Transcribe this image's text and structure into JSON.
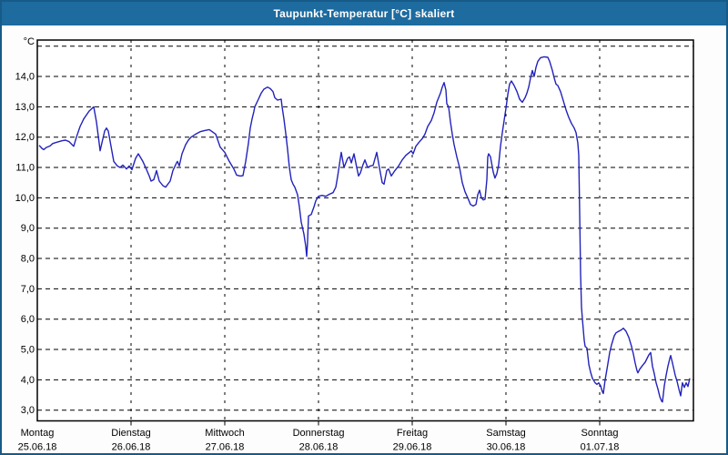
{
  "window": {
    "title": "Taupunkt-Temperatur [°C] skaliert"
  },
  "colors": {
    "title_bar_bg": "#1d6b9f",
    "title_text": "#ffffff",
    "window_border": "#175a87",
    "window_bg": "#fcfdfc",
    "plot_bg": "#ffffff",
    "plot_border": "#000000",
    "gridline": "#000000",
    "series_line": "#2222bb",
    "label_text": "#000000"
  },
  "chart_data": {
    "type": "line",
    "title": "Taupunkt-Temperatur [°C] skaliert",
    "ylabel": "°C",
    "grid": true,
    "legend_position": "none",
    "ylim": [
      2.65,
      15.2
    ],
    "x_range_days": [
      0,
      7
    ],
    "y_gridlines": [
      15,
      14,
      13,
      12,
      11,
      10,
      9,
      8,
      7,
      6,
      5,
      4,
      3
    ],
    "y_tick_labels": [
      {
        "value": 14,
        "label": "14,0"
      },
      {
        "value": 13,
        "label": "13,0"
      },
      {
        "value": 12,
        "label": "12,0"
      },
      {
        "value": 11,
        "label": "11,0"
      },
      {
        "value": 10,
        "label": "10,0"
      },
      {
        "value": 9,
        "label": "9,0"
      },
      {
        "value": 8,
        "label": "8,0"
      },
      {
        "value": 7,
        "label": "7,0"
      },
      {
        "value": 6,
        "label": "6,0"
      },
      {
        "value": 5,
        "label": "5,0"
      },
      {
        "value": 4,
        "label": "4,0"
      },
      {
        "value": 3,
        "label": "3,0"
      }
    ],
    "x_days": [
      {
        "name": "Montag",
        "date": "25.06.18",
        "day_index": 0
      },
      {
        "name": "Dienstag",
        "date": "26.06.18",
        "day_index": 1
      },
      {
        "name": "Mittwoch",
        "date": "27.06.18",
        "day_index": 2
      },
      {
        "name": "Donnerstag",
        "date": "28.06.18",
        "day_index": 3
      },
      {
        "name": "Freitag",
        "date": "29.06.18",
        "day_index": 4
      },
      {
        "name": "Samstag",
        "date": "30.06.18",
        "day_index": 5
      },
      {
        "name": "Sonntag",
        "date": "01.07.18",
        "day_index": 6
      }
    ],
    "series": [
      {
        "name": "Taupunkt-Temperatur",
        "color": "#2222bb",
        "x_unit": "days_since_Mon_25.06.18_00:00",
        "points": [
          [
            0.019,
            11.73
          ],
          [
            0.049,
            11.63
          ],
          [
            0.068,
            11.59
          ],
          [
            0.097,
            11.66
          ],
          [
            0.136,
            11.71
          ],
          [
            0.165,
            11.79
          ],
          [
            0.204,
            11.83
          ],
          [
            0.262,
            11.88
          ],
          [
            0.301,
            11.9
          ],
          [
            0.34,
            11.85
          ],
          [
            0.388,
            11.7
          ],
          [
            0.417,
            12.0
          ],
          [
            0.456,
            12.35
          ],
          [
            0.495,
            12.6
          ],
          [
            0.553,
            12.86
          ],
          [
            0.602,
            13.0
          ],
          [
            0.631,
            12.5
          ],
          [
            0.66,
            11.8
          ],
          [
            0.67,
            11.55
          ],
          [
            0.718,
            12.2
          ],
          [
            0.738,
            12.3
          ],
          [
            0.757,
            12.2
          ],
          [
            0.786,
            11.7
          ],
          [
            0.816,
            11.2
          ],
          [
            0.854,
            11.05
          ],
          [
            0.883,
            11.0
          ],
          [
            0.913,
            11.08
          ],
          [
            0.951,
            10.95
          ],
          [
            0.981,
            11.05
          ],
          [
            1.01,
            10.93
          ],
          [
            1.049,
            11.3
          ],
          [
            1.078,
            11.45
          ],
          [
            1.126,
            11.2
          ],
          [
            1.155,
            11.0
          ],
          [
            1.194,
            10.72
          ],
          [
            1.214,
            10.55
          ],
          [
            1.243,
            10.6
          ],
          [
            1.272,
            10.9
          ],
          [
            1.301,
            10.55
          ],
          [
            1.34,
            10.4
          ],
          [
            1.369,
            10.35
          ],
          [
            1.417,
            10.55
          ],
          [
            1.447,
            10.9
          ],
          [
            1.485,
            11.15
          ],
          [
            1.495,
            11.2
          ],
          [
            1.515,
            11.05
          ],
          [
            1.544,
            11.45
          ],
          [
            1.583,
            11.75
          ],
          [
            1.612,
            11.9
          ],
          [
            1.641,
            12.0
          ],
          [
            1.689,
            12.1
          ],
          [
            1.738,
            12.18
          ],
          [
            1.786,
            12.22
          ],
          [
            1.835,
            12.25
          ],
          [
            1.903,
            12.1
          ],
          [
            1.951,
            11.67
          ],
          [
            2.0,
            11.5
          ],
          [
            2.049,
            11.2
          ],
          [
            2.097,
            10.95
          ],
          [
            2.126,
            10.75
          ],
          [
            2.165,
            10.72
          ],
          [
            2.194,
            10.73
          ],
          [
            2.223,
            11.2
          ],
          [
            2.252,
            11.8
          ],
          [
            2.272,
            12.3
          ],
          [
            2.291,
            12.6
          ],
          [
            2.311,
            12.85
          ],
          [
            2.32,
            13.0
          ],
          [
            2.359,
            13.25
          ],
          [
            2.388,
            13.45
          ],
          [
            2.417,
            13.58
          ],
          [
            2.456,
            13.65
          ],
          [
            2.485,
            13.6
          ],
          [
            2.515,
            13.5
          ],
          [
            2.534,
            13.3
          ],
          [
            2.563,
            13.22
          ],
          [
            2.602,
            13.25
          ],
          [
            2.612,
            13.0
          ],
          [
            2.631,
            12.6
          ],
          [
            2.65,
            12.15
          ],
          [
            2.67,
            11.6
          ],
          [
            2.689,
            11.0
          ],
          [
            2.709,
            10.6
          ],
          [
            2.728,
            10.45
          ],
          [
            2.748,
            10.35
          ],
          [
            2.777,
            10.1
          ],
          [
            2.796,
            9.7
          ],
          [
            2.816,
            9.2
          ],
          [
            2.845,
            8.8
          ],
          [
            2.864,
            8.4
          ],
          [
            2.874,
            8.07
          ],
          [
            2.883,
            8.5
          ],
          [
            2.893,
            9.4
          ],
          [
            2.922,
            9.45
          ],
          [
            2.951,
            9.7
          ],
          [
            2.971,
            9.9
          ],
          [
            3.0,
            10.05
          ],
          [
            3.039,
            10.08
          ],
          [
            3.078,
            10.05
          ],
          [
            3.117,
            10.12
          ],
          [
            3.155,
            10.17
          ],
          [
            3.184,
            10.35
          ],
          [
            3.204,
            10.7
          ],
          [
            3.223,
            11.1
          ],
          [
            3.243,
            11.5
          ],
          [
            3.272,
            11.0
          ],
          [
            3.311,
            11.3
          ],
          [
            3.33,
            11.35
          ],
          [
            3.35,
            11.15
          ],
          [
            3.379,
            11.45
          ],
          [
            3.408,
            11.0
          ],
          [
            3.427,
            10.72
          ],
          [
            3.447,
            10.82
          ],
          [
            3.476,
            11.1
          ],
          [
            3.495,
            11.25
          ],
          [
            3.524,
            11.0
          ],
          [
            3.553,
            11.05
          ],
          [
            3.583,
            11.07
          ],
          [
            3.621,
            11.5
          ],
          [
            3.65,
            11.0
          ],
          [
            3.68,
            10.5
          ],
          [
            3.699,
            10.45
          ],
          [
            3.728,
            10.9
          ],
          [
            3.748,
            10.95
          ],
          [
            3.777,
            10.72
          ],
          [
            3.816,
            10.9
          ],
          [
            3.854,
            11.05
          ],
          [
            3.893,
            11.25
          ],
          [
            3.932,
            11.4
          ],
          [
            3.971,
            11.5
          ],
          [
            3.99,
            11.55
          ],
          [
            4.01,
            11.45
          ],
          [
            4.039,
            11.7
          ],
          [
            4.078,
            11.85
          ],
          [
            4.107,
            11.95
          ],
          [
            4.136,
            12.1
          ],
          [
            4.165,
            12.35
          ],
          [
            4.204,
            12.55
          ],
          [
            4.233,
            12.8
          ],
          [
            4.262,
            13.15
          ],
          [
            4.301,
            13.45
          ],
          [
            4.32,
            13.65
          ],
          [
            4.34,
            13.8
          ],
          [
            4.359,
            13.55
          ],
          [
            4.369,
            13.1
          ],
          [
            4.388,
            13.0
          ],
          [
            4.408,
            12.5
          ],
          [
            4.427,
            12.1
          ],
          [
            4.447,
            11.75
          ],
          [
            4.476,
            11.35
          ],
          [
            4.505,
            11.0
          ],
          [
            4.534,
            10.5
          ],
          [
            4.563,
            10.2
          ],
          [
            4.592,
            10.0
          ],
          [
            4.621,
            9.78
          ],
          [
            4.65,
            9.73
          ],
          [
            4.68,
            9.78
          ],
          [
            4.699,
            10.1
          ],
          [
            4.718,
            10.25
          ],
          [
            4.738,
            10.0
          ],
          [
            4.757,
            9.93
          ],
          [
            4.777,
            9.95
          ],
          [
            4.796,
            10.6
          ],
          [
            4.806,
            11.35
          ],
          [
            4.816,
            11.45
          ],
          [
            4.835,
            11.35
          ],
          [
            4.864,
            10.85
          ],
          [
            4.883,
            10.65
          ],
          [
            4.903,
            10.8
          ],
          [
            4.922,
            11.1
          ],
          [
            4.942,
            11.7
          ],
          [
            4.961,
            12.15
          ],
          [
            4.981,
            12.55
          ],
          [
            5.0,
            12.95
          ],
          [
            5.019,
            13.4
          ],
          [
            5.039,
            13.75
          ],
          [
            5.058,
            13.85
          ],
          [
            5.087,
            13.7
          ],
          [
            5.117,
            13.5
          ],
          [
            5.146,
            13.25
          ],
          [
            5.175,
            13.15
          ],
          [
            5.204,
            13.3
          ],
          [
            5.223,
            13.45
          ],
          [
            5.243,
            13.65
          ],
          [
            5.262,
            13.95
          ],
          [
            5.282,
            14.2
          ],
          [
            5.301,
            14.0
          ],
          [
            5.32,
            14.3
          ],
          [
            5.34,
            14.5
          ],
          [
            5.369,
            14.62
          ],
          [
            5.408,
            14.65
          ],
          [
            5.447,
            14.63
          ],
          [
            5.466,
            14.5
          ],
          [
            5.495,
            14.2
          ],
          [
            5.515,
            13.95
          ],
          [
            5.534,
            13.75
          ],
          [
            5.553,
            13.7
          ],
          [
            5.583,
            13.5
          ],
          [
            5.612,
            13.2
          ],
          [
            5.641,
            12.9
          ],
          [
            5.67,
            12.65
          ],
          [
            5.699,
            12.45
          ],
          [
            5.728,
            12.3
          ],
          [
            5.748,
            12.15
          ],
          [
            5.767,
            11.8
          ],
          [
            5.777,
            11.4
          ],
          [
            5.786,
            9.5
          ],
          [
            5.796,
            7.5
          ],
          [
            5.806,
            6.4
          ],
          [
            5.816,
            6.0
          ],
          [
            5.835,
            5.3
          ],
          [
            5.845,
            5.1
          ],
          [
            5.864,
            5.05
          ],
          [
            5.884,
            4.5
          ],
          [
            5.903,
            4.25
          ],
          [
            5.922,
            4.05
          ],
          [
            5.951,
            3.9
          ],
          [
            5.971,
            3.85
          ],
          [
            5.99,
            3.9
          ],
          [
            6.01,
            3.8
          ],
          [
            6.029,
            3.6
          ],
          [
            6.039,
            3.55
          ],
          [
            6.058,
            4.0
          ],
          [
            6.078,
            4.35
          ],
          [
            6.107,
            4.9
          ],
          [
            6.126,
            5.15
          ],
          [
            6.155,
            5.45
          ],
          [
            6.175,
            5.55
          ],
          [
            6.204,
            5.6
          ],
          [
            6.233,
            5.65
          ],
          [
            6.252,
            5.7
          ],
          [
            6.281,
            5.6
          ],
          [
            6.311,
            5.4
          ],
          [
            6.34,
            5.1
          ],
          [
            6.359,
            4.85
          ],
          [
            6.379,
            4.55
          ],
          [
            6.398,
            4.3
          ],
          [
            6.408,
            4.23
          ],
          [
            6.427,
            4.35
          ],
          [
            6.456,
            4.47
          ],
          [
            6.485,
            4.58
          ],
          [
            6.505,
            4.7
          ],
          [
            6.524,
            4.82
          ],
          [
            6.544,
            4.9
          ],
          [
            6.563,
            4.45
          ],
          [
            6.583,
            4.2
          ],
          [
            6.602,
            3.9
          ],
          [
            6.621,
            3.7
          ],
          [
            6.641,
            3.45
          ],
          [
            6.66,
            3.3
          ],
          [
            6.67,
            3.27
          ],
          [
            6.689,
            3.8
          ],
          [
            6.709,
            4.15
          ],
          [
            6.728,
            4.45
          ],
          [
            6.748,
            4.7
          ],
          [
            6.757,
            4.8
          ],
          [
            6.777,
            4.55
          ],
          [
            6.806,
            4.15
          ],
          [
            6.825,
            3.95
          ],
          [
            6.845,
            3.7
          ],
          [
            6.864,
            3.47
          ],
          [
            6.883,
            3.9
          ],
          [
            6.903,
            3.75
          ],
          [
            6.922,
            3.9
          ],
          [
            6.942,
            3.78
          ],
          [
            6.961,
            4.05
          ]
        ]
      }
    ]
  }
}
